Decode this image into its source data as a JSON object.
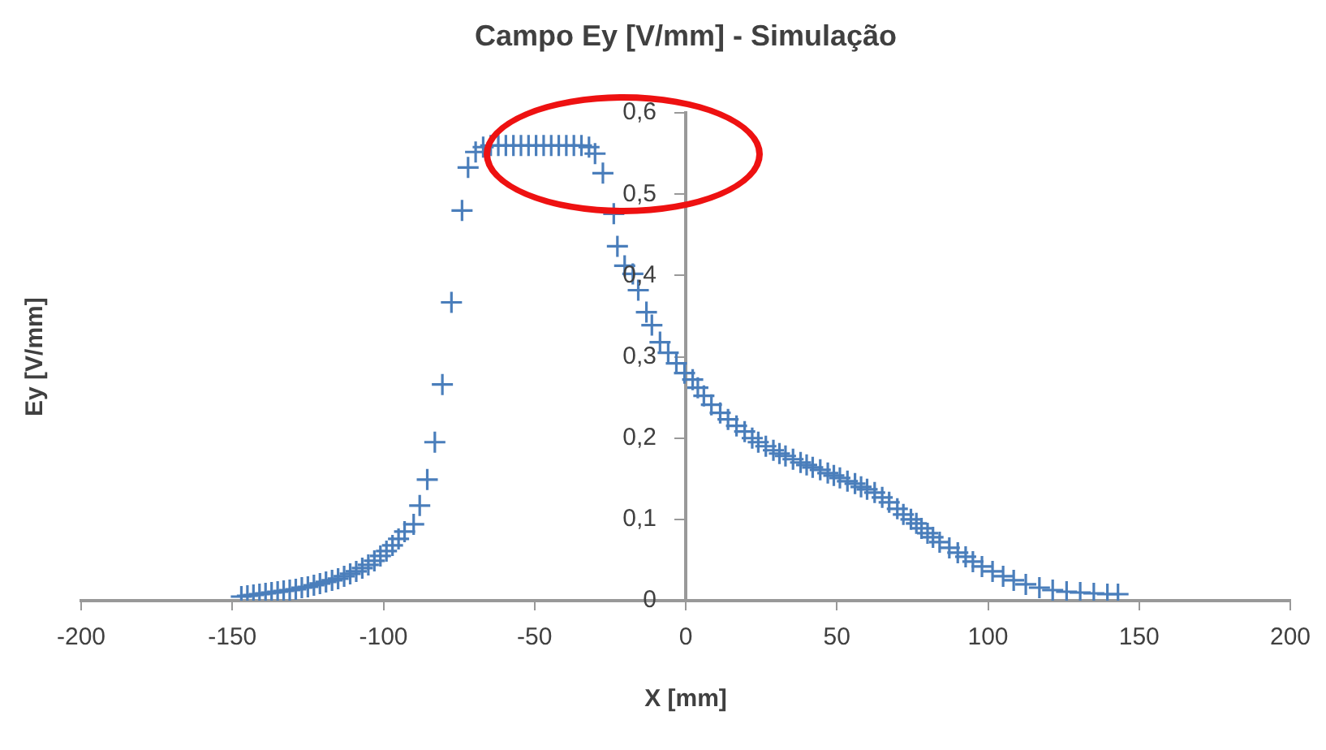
{
  "chart_data": {
    "type": "scatter",
    "title": "Campo Ey [V/mm] - Simulação",
    "xlabel": "X [mm]",
    "ylabel": "Ey [V/mm]",
    "x": [
      -147,
      -145,
      -143,
      -141,
      -139,
      -137,
      -135,
      -133,
      -131,
      -129,
      -127,
      -125,
      -123,
      -121,
      -119,
      -117,
      -115,
      -113,
      -111,
      -109,
      -107,
      -105,
      -103,
      -101,
      -99,
      -97,
      -95,
      -93,
      -90,
      -88,
      -85.5,
      -83,
      -80.5,
      -77.5,
      -74,
      -72,
      -69.5,
      -67,
      -64.5,
      -62,
      -59.5,
      -57,
      -54.5,
      -52,
      -49.5,
      -47,
      -44.5,
      -42,
      -39.5,
      -37,
      -34.5,
      -32,
      -30,
      -27.4,
      -23.8,
      -22.6,
      -20.2,
      -17.5,
      -15.7,
      -13,
      -11.2,
      -8.5,
      -5.8,
      -3.1,
      -0.4,
      2.3,
      4,
      6,
      8.5,
      11.4,
      14,
      16.8,
      19.5,
      22,
      24,
      26.5,
      29,
      31,
      33,
      35.5,
      38,
      40,
      42,
      44.5,
      47,
      49,
      51,
      53.5,
      56,
      58,
      60,
      62.5,
      65,
      67.3,
      70,
      72,
      74.5,
      76.3,
      78,
      80,
      81.8,
      84,
      87.2,
      90,
      92.6,
      95,
      98,
      101.5,
      105,
      108.5,
      112.5,
      117,
      121.4,
      126,
      130.5,
      135,
      139.5,
      143
    ],
    "series": [
      {
        "color": "#4a7ebb",
        "values": [
          0.005,
          0.006,
          0.007,
          0.008,
          0.009,
          0.01,
          0.011,
          0.012,
          0.013,
          0.014,
          0.016,
          0.017,
          0.019,
          0.021,
          0.023,
          0.025,
          0.027,
          0.03,
          0.033,
          0.036,
          0.04,
          0.044,
          0.049,
          0.055,
          0.061,
          0.068,
          0.076,
          0.085,
          0.094,
          0.117,
          0.149,
          0.195,
          0.266,
          0.367,
          0.48,
          0.533,
          0.552,
          0.558,
          0.56,
          0.56,
          0.56,
          0.56,
          0.56,
          0.56,
          0.56,
          0.56,
          0.56,
          0.56,
          0.56,
          0.56,
          0.56,
          0.558,
          0.55,
          0.526,
          0.476,
          0.436,
          0.412,
          0.402,
          0.382,
          0.355,
          0.339,
          0.318,
          0.305,
          0.292,
          0.28,
          0.272,
          0.262,
          0.252,
          0.241,
          0.231,
          0.223,
          0.215,
          0.208,
          0.2,
          0.195,
          0.19,
          0.185,
          0.181,
          0.178,
          0.174,
          0.17,
          0.167,
          0.164,
          0.161,
          0.157,
          0.154,
          0.151,
          0.147,
          0.144,
          0.14,
          0.137,
          0.133,
          0.127,
          0.121,
          0.113,
          0.106,
          0.1,
          0.095,
          0.089,
          0.083,
          0.078,
          0.072,
          0.065,
          0.059,
          0.054,
          0.048,
          0.042,
          0.036,
          0.03,
          0.025,
          0.02,
          0.016,
          0.013,
          0.011,
          0.01,
          0.009,
          0.008,
          0.008
        ]
      }
    ],
    "xlim": [
      -200,
      200
    ],
    "xticks": [
      -200,
      -150,
      -100,
      -50,
      0,
      50,
      100,
      150,
      200
    ],
    "ylim": [
      0,
      0.6
    ],
    "yticks": [
      {
        "value": 0,
        "label": "0"
      },
      {
        "value": 0.1,
        "label": "0,1"
      },
      {
        "value": 0.2,
        "label": "0,2"
      },
      {
        "value": 0.3,
        "label": "0,3"
      },
      {
        "value": 0.4,
        "label": "0,4"
      },
      {
        "value": 0.5,
        "label": "0,5"
      },
      {
        "value": 0.6,
        "label": "0,6"
      }
    ],
    "grid": false,
    "legend": false,
    "marker": "cross"
  }
}
